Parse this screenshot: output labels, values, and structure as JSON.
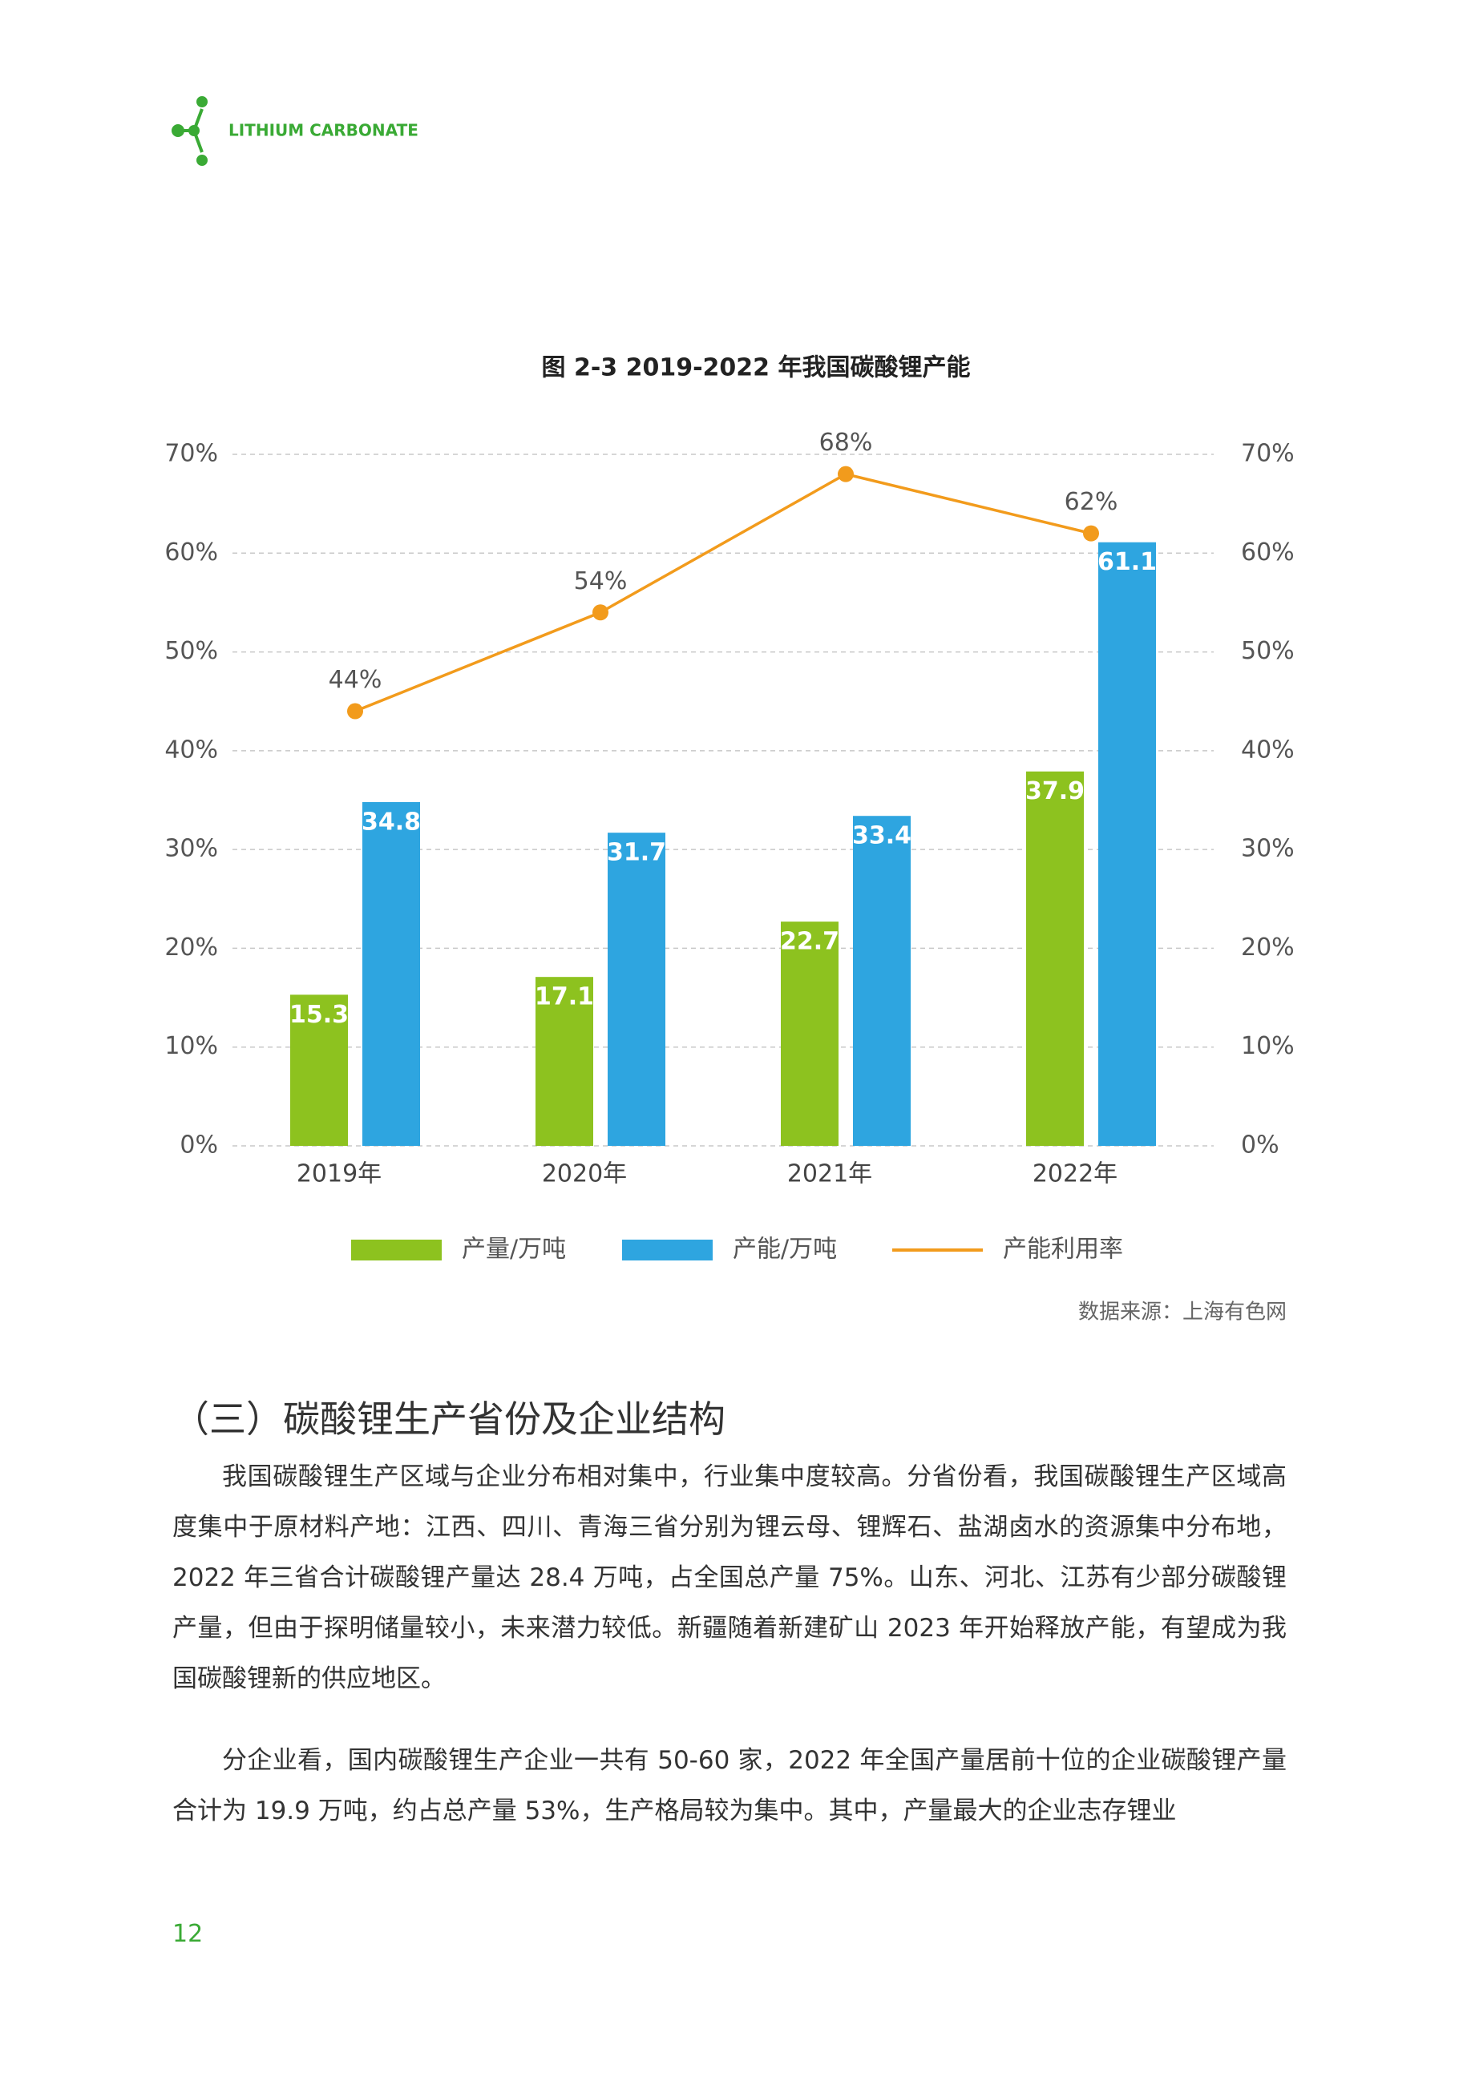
{
  "header": {
    "title": "LITHIUM CARBONATE"
  },
  "chart_data": {
    "type": "bar",
    "title": "图 2-3 2019-2022 年我国碳酸锂产能",
    "categories": [
      "2019年",
      "2020年",
      "2021年",
      "2022年"
    ],
    "series": [
      {
        "name": "产量/万吨",
        "color": "#8dc21f",
        "values": [
          15.3,
          17.1,
          22.7,
          37.9
        ]
      },
      {
        "name": "产能/万吨",
        "color": "#2ea5e0",
        "values": [
          34.8,
          31.7,
          33.4,
          61.1
        ]
      },
      {
        "name": "产能利用率",
        "type": "line",
        "axis": "y2",
        "color": "#f29b1c",
        "values": [
          44,
          54,
          68,
          62
        ],
        "value_labels": [
          "44%",
          "54%",
          "68%",
          "62%"
        ]
      }
    ],
    "ylim": [
      0,
      70
    ],
    "yticks": [
      {
        "value": 0,
        "label": "0%"
      },
      {
        "value": 10,
        "label": "10%"
      },
      {
        "value": 20,
        "label": "20%"
      },
      {
        "value": 30,
        "label": "30%"
      },
      {
        "value": 40,
        "label": "40%"
      },
      {
        "value": 50,
        "label": "50%"
      },
      {
        "value": 60,
        "label": "60%"
      },
      {
        "value": 70,
        "label": "70%"
      }
    ],
    "y2lim": [
      0,
      70
    ],
    "y2ticks": [
      {
        "value": 0,
        "label": "0%"
      },
      {
        "value": 10,
        "label": "10%"
      },
      {
        "value": 20,
        "label": "20%"
      },
      {
        "value": 30,
        "label": "30%"
      },
      {
        "value": 40,
        "label": "40%"
      },
      {
        "value": 50,
        "label": "50%"
      },
      {
        "value": 60,
        "label": "60%"
      },
      {
        "value": 70,
        "label": "70%"
      }
    ],
    "grid": true,
    "legend": "bottom",
    "source": "数据来源：上海有色网"
  },
  "section": {
    "heading": "（三）碳酸锂生产省份及企业结构",
    "paragraphs": [
      "我国碳酸锂生产区域与企业分布相对集中，行业集中度较高。分省份看，我国碳酸锂生产区域高度集中于原材料产地：江西、四川、青海三省分别为锂云母、锂辉石、盐湖卤水的资源集中分布地，2022 年三省合计碳酸锂产量达 28.4 万吨，占全国总产量 75%。山东、河北、江苏有少部分碳酸锂产量，但由于探明储量较小，未来潜力较低。新疆随着新建矿山 2023 年开始释放产能，有望成为我国碳酸锂新的供应地区。",
      "分企业看，国内碳酸锂生产企业一共有 50-60 家，2022 年全国产量居前十位的企业碳酸锂产量合计为 19.9 万吨，约占总产量 53%，生产格局较为集中。其中，产量最大的企业志存锂业"
    ]
  },
  "page_number": "12"
}
